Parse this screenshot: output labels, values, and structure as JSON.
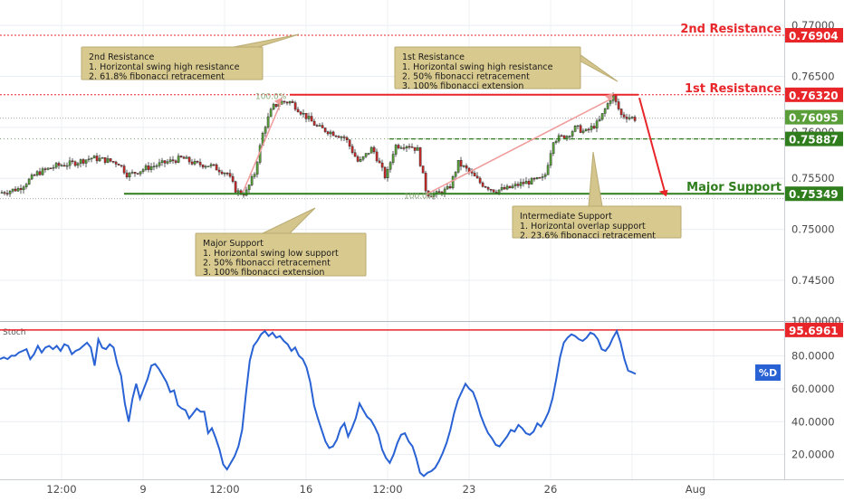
{
  "chart_data": [
    {
      "type": "candlestick",
      "title": "",
      "ylim": [
        0.741,
        0.7725
      ],
      "y_ticks": [
        "0.77000",
        "0.76500",
        "0.75500",
        "0.75000",
        "0.74500"
      ],
      "price_axis_labels": {
        "current_price": "0.76095",
        "partially_hidden": "0.76000"
      },
      "levels": [
        {
          "name": "2nd Resistance",
          "value": 0.76904,
          "label": "0.76904",
          "color": "#e8262a"
        },
        {
          "name": "1st Resistance",
          "value": 0.7632,
          "label": "0.76320",
          "color": "#e8262a"
        },
        {
          "name": "",
          "value": 0.75887,
          "label": "0.75887",
          "color": "#2f7d1d"
        },
        {
          "name": "Major Support",
          "value": 0.75349,
          "label": "0.75349",
          "color": "#2f7d1d"
        }
      ],
      "fib_labels": [
        "100.0%",
        "100.0%"
      ],
      "annotations": [
        {
          "id": "res2",
          "title": "2nd Resistance",
          "lines": [
            "1. Horizontal swing high resistance",
            "2. 61.8% fibonacci retracement"
          ]
        },
        {
          "id": "res1",
          "title": "1st Resistance",
          "lines": [
            "1. Horizontal swing high resistance",
            "2. 50% fibonacci retracement",
            "3. 100% fibonacci extension"
          ]
        },
        {
          "id": "major",
          "title": "Major Support",
          "lines": [
            "1. Horizontal swing low support",
            "2. 50% fibonacci retracement",
            "3. 100% fibonacci extension"
          ]
        },
        {
          "id": "inter",
          "title": "Intermediate Support",
          "lines": [
            "1. Horizontal overlap support",
            "2. 23.6% fibonacci retracement"
          ]
        }
      ]
    },
    {
      "type": "line",
      "series": [
        {
          "name": "%D",
          "color": "#2962d4"
        }
      ],
      "panel_label": "Stoch",
      "ylim": [
        5,
        100
      ],
      "y_ticks": [
        "80.0000",
        "60.0000",
        "40.0000",
        "20.0000"
      ],
      "top_label": "100.0000",
      "level": {
        "value": 95.6961,
        "label": "95.6961",
        "color": "#e8262a"
      },
      "values": [
        78,
        79,
        78,
        80,
        80,
        82,
        83,
        84,
        78,
        81,
        86,
        82,
        85,
        86,
        84,
        86,
        83,
        87,
        86,
        81,
        83,
        84,
        86,
        88,
        85,
        74,
        90,
        85,
        84,
        87,
        85,
        75,
        68,
        51,
        40,
        54,
        63,
        54,
        60,
        66,
        74,
        75,
        72,
        68,
        64,
        58,
        59,
        50,
        48,
        47,
        42,
        45,
        48,
        46,
        46,
        33,
        36,
        30,
        23,
        14,
        11,
        15,
        19,
        25,
        35,
        57,
        77,
        86,
        89,
        93,
        95,
        92,
        94,
        91,
        92,
        89,
        87,
        83,
        85,
        80,
        78,
        73,
        64,
        50,
        42,
        35,
        28,
        24,
        25,
        29,
        36,
        39,
        31,
        36,
        42,
        51,
        47,
        43,
        41,
        37,
        32,
        23,
        18,
        15,
        20,
        27,
        32,
        33,
        28,
        25,
        18,
        9,
        7,
        9,
        10,
        12,
        16,
        21,
        27,
        35,
        45,
        53,
        58,
        63,
        60,
        58,
        52,
        44,
        38,
        33,
        30,
        26,
        25,
        28,
        31,
        35,
        34,
        38,
        36,
        33,
        32,
        34,
        39,
        37,
        41,
        46,
        54,
        66,
        79,
        88,
        91,
        93,
        92,
        90,
        89,
        91,
        94,
        93,
        90,
        84,
        83,
        86,
        91,
        95,
        88,
        78,
        71,
        70,
        69
      ],
      "x_tick_labels": [
        "12:00",
        "9",
        "12:00",
        "16",
        "12:00",
        "23",
        "26",
        "Aug"
      ]
    }
  ]
}
